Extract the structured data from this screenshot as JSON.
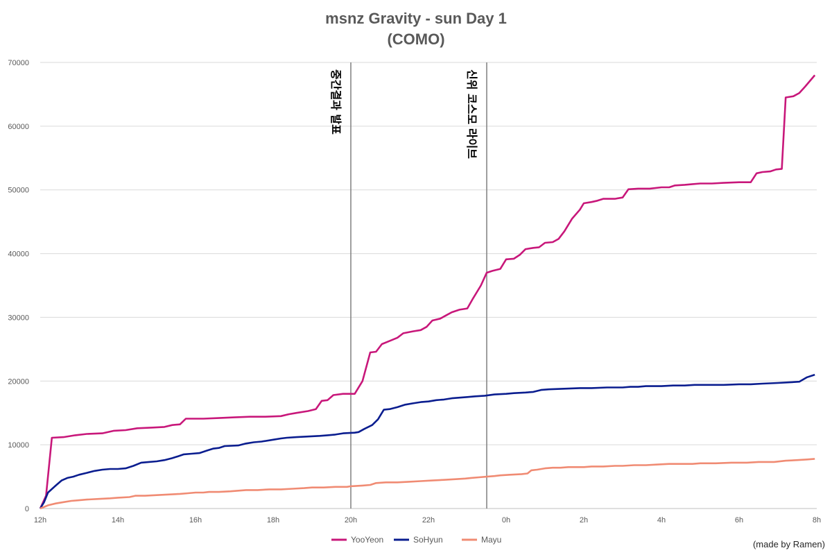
{
  "chart_data": {
    "type": "line",
    "title": "msnz Gravity - sun Day 1",
    "subtitle": "(COMO)",
    "x_tick_labels": [
      "12h",
      "14h",
      "16h",
      "18h",
      "20h",
      "22h",
      "0h",
      "2h",
      "4h",
      "6h",
      "8h"
    ],
    "x_ticks_hours": [
      12,
      14,
      16,
      18,
      20,
      22,
      24,
      26,
      28,
      30,
      32
    ],
    "xlim": [
      12,
      32
    ],
    "y_ticks": [
      0,
      10000,
      20000,
      30000,
      40000,
      50000,
      60000,
      70000
    ],
    "ylim": [
      0,
      70000
    ],
    "grid": "horizontal",
    "legend_position": "bottom",
    "annotations": [
      {
        "x": 20,
        "text": "중간결과 발표"
      },
      {
        "x": 23.5,
        "text": "신위 코스모 라이브"
      }
    ],
    "series": [
      {
        "name": "YooYeon",
        "color": "#c8177a",
        "points": [
          [
            12,
            0
          ],
          [
            12.15,
            2000
          ],
          [
            12.3,
            11100
          ],
          [
            12.6,
            11200
          ],
          [
            12.9,
            11500
          ],
          [
            13.2,
            11700
          ],
          [
            13.6,
            11800
          ],
          [
            13.9,
            12200
          ],
          [
            14.2,
            12300
          ],
          [
            14.5,
            12600
          ],
          [
            14.9,
            12700
          ],
          [
            15.2,
            12800
          ],
          [
            15.4,
            13100
          ],
          [
            15.6,
            13200
          ],
          [
            15.75,
            14100
          ],
          [
            16.2,
            14100
          ],
          [
            16.6,
            14200
          ],
          [
            17,
            14300
          ],
          [
            17.4,
            14400
          ],
          [
            17.8,
            14400
          ],
          [
            18.2,
            14500
          ],
          [
            18.4,
            14800
          ],
          [
            18.6,
            15000
          ],
          [
            18.9,
            15300
          ],
          [
            19.1,
            15600
          ],
          [
            19.25,
            16900
          ],
          [
            19.4,
            17000
          ],
          [
            19.55,
            17800
          ],
          [
            19.8,
            18000
          ],
          [
            20.1,
            18000
          ],
          [
            20.3,
            20000
          ],
          [
            20.5,
            24500
          ],
          [
            20.65,
            24600
          ],
          [
            20.8,
            25800
          ],
          [
            21,
            26300
          ],
          [
            21.2,
            26800
          ],
          [
            21.35,
            27500
          ],
          [
            21.6,
            27800
          ],
          [
            21.8,
            28000
          ],
          [
            21.95,
            28500
          ],
          [
            22.1,
            29500
          ],
          [
            22.3,
            29800
          ],
          [
            22.45,
            30300
          ],
          [
            22.6,
            30800
          ],
          [
            22.8,
            31200
          ],
          [
            23,
            31400
          ],
          [
            23.15,
            33000
          ],
          [
            23.35,
            35000
          ],
          [
            23.5,
            37000
          ],
          [
            23.65,
            37300
          ],
          [
            23.85,
            37600
          ],
          [
            24,
            39100
          ],
          [
            24.2,
            39200
          ],
          [
            24.35,
            39800
          ],
          [
            24.5,
            40700
          ],
          [
            24.7,
            40900
          ],
          [
            24.85,
            41000
          ],
          [
            25,
            41700
          ],
          [
            25.2,
            41800
          ],
          [
            25.35,
            42300
          ],
          [
            25.5,
            43500
          ],
          [
            25.7,
            45500
          ],
          [
            25.9,
            46900
          ],
          [
            26,
            47900
          ],
          [
            26.2,
            48100
          ],
          [
            26.35,
            48300
          ],
          [
            26.5,
            48600
          ],
          [
            26.8,
            48600
          ],
          [
            27,
            48800
          ],
          [
            27.15,
            50100
          ],
          [
            27.4,
            50200
          ],
          [
            27.7,
            50200
          ],
          [
            28,
            50400
          ],
          [
            28.2,
            50400
          ],
          [
            28.35,
            50700
          ],
          [
            28.6,
            50800
          ],
          [
            28.8,
            50900
          ],
          [
            29,
            51000
          ],
          [
            29.3,
            51000
          ],
          [
            29.6,
            51100
          ],
          [
            30,
            51200
          ],
          [
            30.3,
            51200
          ],
          [
            30.45,
            52600
          ],
          [
            30.6,
            52800
          ],
          [
            30.8,
            52900
          ],
          [
            30.95,
            53200
          ],
          [
            31.1,
            53300
          ],
          [
            31.2,
            64500
          ],
          [
            31.4,
            64700
          ],
          [
            31.55,
            65200
          ],
          [
            31.7,
            66200
          ],
          [
            31.95,
            68000
          ]
        ]
      },
      {
        "name": "SoHyun",
        "color": "#0a1d8f",
        "points": [
          [
            12,
            0
          ],
          [
            12.1,
            1000
          ],
          [
            12.2,
            2500
          ],
          [
            12.4,
            3600
          ],
          [
            12.55,
            4400
          ],
          [
            12.7,
            4800
          ],
          [
            12.85,
            5000
          ],
          [
            13,
            5300
          ],
          [
            13.2,
            5600
          ],
          [
            13.4,
            5900
          ],
          [
            13.6,
            6100
          ],
          [
            13.8,
            6200
          ],
          [
            14,
            6200
          ],
          [
            14.2,
            6300
          ],
          [
            14.4,
            6700
          ],
          [
            14.6,
            7200
          ],
          [
            14.8,
            7300
          ],
          [
            15,
            7400
          ],
          [
            15.2,
            7600
          ],
          [
            15.4,
            7900
          ],
          [
            15.55,
            8200
          ],
          [
            15.7,
            8500
          ],
          [
            15.9,
            8600
          ],
          [
            16.1,
            8700
          ],
          [
            16.3,
            9100
          ],
          [
            16.45,
            9400
          ],
          [
            16.6,
            9500
          ],
          [
            16.75,
            9800
          ],
          [
            17.1,
            9900
          ],
          [
            17.3,
            10200
          ],
          [
            17.5,
            10400
          ],
          [
            17.7,
            10500
          ],
          [
            18,
            10800
          ],
          [
            18.2,
            11000
          ],
          [
            18.35,
            11100
          ],
          [
            18.6,
            11200
          ],
          [
            18.9,
            11300
          ],
          [
            19.2,
            11400
          ],
          [
            19.4,
            11500
          ],
          [
            19.6,
            11600
          ],
          [
            19.8,
            11800
          ],
          [
            20.1,
            11900
          ],
          [
            20.2,
            12000
          ],
          [
            20.35,
            12500
          ],
          [
            20.55,
            13100
          ],
          [
            20.7,
            14000
          ],
          [
            20.85,
            15500
          ],
          [
            21,
            15600
          ],
          [
            21.2,
            15900
          ],
          [
            21.4,
            16300
          ],
          [
            21.6,
            16500
          ],
          [
            21.8,
            16700
          ],
          [
            22,
            16800
          ],
          [
            22.2,
            17000
          ],
          [
            22.4,
            17100
          ],
          [
            22.6,
            17300
          ],
          [
            22.8,
            17400
          ],
          [
            23,
            17500
          ],
          [
            23.2,
            17600
          ],
          [
            23.45,
            17700
          ],
          [
            23.7,
            17900
          ],
          [
            24,
            18000
          ],
          [
            24.2,
            18100
          ],
          [
            24.5,
            18200
          ],
          [
            24.7,
            18300
          ],
          [
            24.9,
            18600
          ],
          [
            25.1,
            18700
          ],
          [
            25.5,
            18800
          ],
          [
            25.9,
            18900
          ],
          [
            26.2,
            18900
          ],
          [
            26.6,
            19000
          ],
          [
            27,
            19000
          ],
          [
            27.2,
            19100
          ],
          [
            27.4,
            19100
          ],
          [
            27.6,
            19200
          ],
          [
            28,
            19200
          ],
          [
            28.3,
            19300
          ],
          [
            28.6,
            19300
          ],
          [
            28.85,
            19400
          ],
          [
            29.2,
            19400
          ],
          [
            29.6,
            19400
          ],
          [
            30,
            19500
          ],
          [
            30.3,
            19500
          ],
          [
            30.6,
            19600
          ],
          [
            31,
            19700
          ],
          [
            31.3,
            19800
          ],
          [
            31.55,
            19900
          ],
          [
            31.75,
            20600
          ],
          [
            31.95,
            21000
          ]
        ]
      },
      {
        "name": "Mayu",
        "color": "#f08b73",
        "points": [
          [
            12,
            0
          ],
          [
            12.2,
            500
          ],
          [
            12.4,
            800
          ],
          [
            12.6,
            1000
          ],
          [
            12.8,
            1200
          ],
          [
            13,
            1300
          ],
          [
            13.2,
            1400
          ],
          [
            13.5,
            1500
          ],
          [
            13.8,
            1600
          ],
          [
            14,
            1700
          ],
          [
            14.3,
            1800
          ],
          [
            14.45,
            2000
          ],
          [
            14.7,
            2000
          ],
          [
            15,
            2100
          ],
          [
            15.3,
            2200
          ],
          [
            15.6,
            2300
          ],
          [
            15.8,
            2400
          ],
          [
            16,
            2500
          ],
          [
            16.2,
            2500
          ],
          [
            16.35,
            2600
          ],
          [
            16.6,
            2600
          ],
          [
            16.9,
            2700
          ],
          [
            17.1,
            2800
          ],
          [
            17.3,
            2900
          ],
          [
            17.6,
            2900
          ],
          [
            17.9,
            3000
          ],
          [
            18.2,
            3000
          ],
          [
            18.5,
            3100
          ],
          [
            18.8,
            3200
          ],
          [
            19,
            3300
          ],
          [
            19.3,
            3300
          ],
          [
            19.6,
            3400
          ],
          [
            19.9,
            3400
          ],
          [
            20,
            3500
          ],
          [
            20.3,
            3600
          ],
          [
            20.5,
            3700
          ],
          [
            20.65,
            4000
          ],
          [
            20.9,
            4100
          ],
          [
            21.2,
            4100
          ],
          [
            21.5,
            4200
          ],
          [
            21.8,
            4300
          ],
          [
            22.1,
            4400
          ],
          [
            22.4,
            4500
          ],
          [
            22.7,
            4600
          ],
          [
            22.95,
            4700
          ],
          [
            23.1,
            4800
          ],
          [
            23.3,
            4900
          ],
          [
            23.5,
            5000
          ],
          [
            23.7,
            5100
          ],
          [
            23.85,
            5200
          ],
          [
            24.1,
            5300
          ],
          [
            24.4,
            5400
          ],
          [
            24.55,
            5500
          ],
          [
            24.65,
            6000
          ],
          [
            24.8,
            6100
          ],
          [
            25,
            6300
          ],
          [
            25.2,
            6400
          ],
          [
            25.4,
            6400
          ],
          [
            25.6,
            6500
          ],
          [
            25.8,
            6500
          ],
          [
            26,
            6500
          ],
          [
            26.2,
            6600
          ],
          [
            26.5,
            6600
          ],
          [
            26.8,
            6700
          ],
          [
            27,
            6700
          ],
          [
            27.3,
            6800
          ],
          [
            27.6,
            6800
          ],
          [
            27.9,
            6900
          ],
          [
            28.2,
            7000
          ],
          [
            28.5,
            7000
          ],
          [
            28.8,
            7000
          ],
          [
            29,
            7100
          ],
          [
            29.4,
            7100
          ],
          [
            29.8,
            7200
          ],
          [
            30.2,
            7200
          ],
          [
            30.5,
            7300
          ],
          [
            30.9,
            7300
          ],
          [
            31.2,
            7500
          ],
          [
            31.5,
            7600
          ],
          [
            31.75,
            7700
          ],
          [
            31.95,
            7800
          ]
        ]
      }
    ]
  },
  "credit": "(made by Ramen)"
}
